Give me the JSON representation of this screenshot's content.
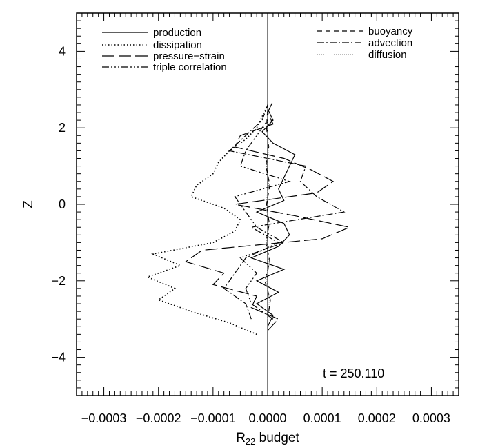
{
  "chart_data": {
    "type": "line",
    "title": "",
    "xlabel_main": "R",
    "xlabel_sub": "22",
    "xlabel_rest": " budget",
    "ylabel": "Z",
    "xlim": [
      -0.00035,
      0.00035
    ],
    "ylim": [
      -5,
      5
    ],
    "xticks": [
      -0.0003,
      -0.0002,
      -0.0001,
      0.0,
      0.0001,
      0.0002,
      0.0003
    ],
    "xtick_labels": [
      "−0.0003",
      "−0.0002",
      "−0.0001",
      "0.0000",
      "0.0001",
      "0.0002",
      "0.0003"
    ],
    "yticks": [
      -4,
      -2,
      0,
      2,
      4
    ],
    "ytick_labels": [
      "−4",
      "−2",
      "0",
      "2",
      "4"
    ],
    "annotation": "t = 250.110",
    "legend_left": [
      "production",
      "dissipation",
      "pressure−strain",
      "triple correlation"
    ],
    "legend_right": [
      "buoyancy",
      "advection",
      "diffusion"
    ],
    "series": [
      {
        "name": "production",
        "dash": "solid",
        "z": [
          -3.2,
          -2.9,
          -2.6,
          -2.3,
          -2.0,
          -1.7,
          -1.4,
          -1.1,
          -0.8,
          -0.5,
          -0.2,
          0.1,
          0.4,
          0.7,
          1.0,
          1.3,
          1.6,
          1.9,
          2.2,
          2.5
        ],
        "x": [
          0.0,
          1e-05,
          -2e-05,
          2e-05,
          -2e-05,
          3e-05,
          -3e-05,
          2e-05,
          4e-05,
          3e-05,
          -2e-05,
          3e-05,
          2e-05,
          3e-05,
          4e-05,
          5e-05,
          1e-05,
          -1e-05,
          1e-05,
          0.0
        ]
      },
      {
        "name": "dissipation",
        "dash": "dotted",
        "z": [
          -3.4,
          -3.1,
          -2.8,
          -2.5,
          -2.2,
          -1.9,
          -1.6,
          -1.3,
          -1.0,
          -0.7,
          -0.4,
          -0.1,
          0.2,
          0.5,
          0.8,
          1.1,
          1.4,
          1.7,
          2.0,
          2.3,
          2.6
        ],
        "x": [
          -2e-05,
          -7e-05,
          -0.00014,
          -0.0002,
          -0.00017,
          -0.00022,
          -0.00016,
          -0.00021,
          -0.0001,
          -6e-05,
          -5e-05,
          -8e-05,
          -0.00014,
          -0.00013,
          -0.0001,
          -9e-05,
          -7e-05,
          -4e-05,
          -2e-05,
          -1e-05,
          0.0
        ]
      },
      {
        "name": "pressure−strain",
        "dash": "longdash",
        "z": [
          -3.3,
          -3.0,
          -2.7,
          -2.4,
          -2.1,
          -1.8,
          -1.5,
          -1.2,
          -0.9,
          -0.6,
          -0.3,
          0.0,
          0.3,
          0.6,
          0.9,
          1.2,
          1.5,
          1.8,
          2.1,
          2.4,
          2.7
        ],
        "x": [
          0.0,
          2e-05,
          -3e-05,
          -2e-05,
          -0.0001,
          -8e-05,
          -0.00015,
          -0.00012,
          0.0001,
          0.00015,
          5e-05,
          -6e-05,
          9e-05,
          0.00012,
          8e-05,
          3e-05,
          -6e-05,
          -5e-05,
          1e-05,
          0.0,
          1e-05
        ]
      },
      {
        "name": "triple correlation",
        "dash": "dashdotdot",
        "z": [
          -3.0,
          -2.6,
          -2.2,
          -1.8,
          -1.4,
          -1.0,
          -0.6,
          -0.2,
          0.2,
          0.6,
          1.0,
          1.4,
          1.8,
          2.2
        ],
        "x": [
          1e-05,
          -3e-05,
          -4e-05,
          -2e-05,
          -5e-05,
          3e-05,
          -2e-05,
          -4e-05,
          -6e-05,
          4e-05,
          -5e-05,
          -4e-05,
          -2e-05,
          0.0
        ]
      },
      {
        "name": "buoyancy",
        "dash": "dashed",
        "z": [
          -3.0,
          -2.5,
          -2.0,
          -1.5,
          -1.0,
          -0.5,
          0.0,
          0.5,
          1.0,
          1.5,
          2.0,
          2.5
        ],
        "x": [
          0.0,
          5e-06,
          -5e-06,
          4e-06,
          -3e-06,
          3e-06,
          -2e-06,
          4e-06,
          -3e-06,
          2e-06,
          -2e-06,
          0.0
        ]
      },
      {
        "name": "advection",
        "dash": "dashdot",
        "z": [
          -3.0,
          -2.6,
          -2.2,
          -1.8,
          -1.4,
          -1.0,
          -0.6,
          -0.2,
          0.2,
          0.6,
          1.0,
          1.4,
          1.8,
          2.2,
          2.6
        ],
        "x": [
          -3e-05,
          -4e-05,
          -8e-05,
          -6e-05,
          -4e-05,
          2e-05,
          -3e-05,
          0.00014,
          9e-05,
          6e-05,
          7e-05,
          -7e-05,
          -4e-05,
          -1e-05,
          0.0
        ]
      },
      {
        "name": "diffusion",
        "dash": "fine",
        "z": [
          -3.0,
          -2.5,
          -2.0,
          -1.5,
          -1.0,
          -0.5,
          0.0,
          0.5,
          1.0,
          1.5,
          2.0,
          2.5
        ],
        "x": [
          0.0,
          3e-06,
          -2e-06,
          3e-06,
          -2e-06,
          2e-06,
          -3e-06,
          2e-06,
          -2e-06,
          2e-06,
          -1e-06,
          0.0
        ]
      }
    ]
  }
}
